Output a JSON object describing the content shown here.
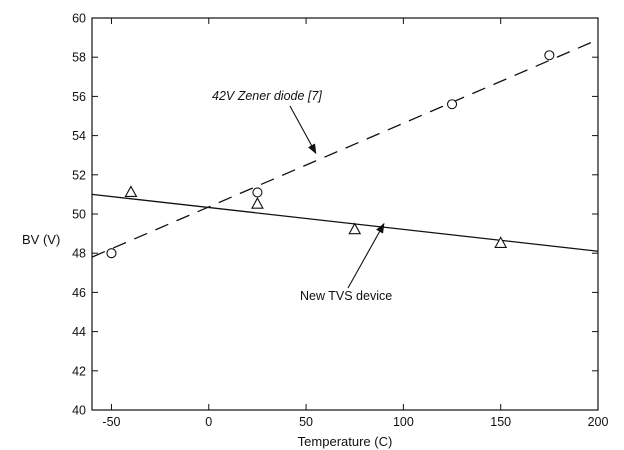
{
  "chart_data": {
    "type": "scatter",
    "title": "",
    "xlabel": "Temperature (C)",
    "ylabel": "BV (V)",
    "xlim": [
      -60,
      200
    ],
    "ylim": [
      40,
      60
    ],
    "xticks": [
      -50,
      0,
      50,
      100,
      150,
      200
    ],
    "yticks": [
      40,
      42,
      44,
      46,
      48,
      50,
      52,
      54,
      56,
      58,
      60
    ],
    "grid": false,
    "legend": "none",
    "series": [
      {
        "name": "42V Zener diode [7]",
        "marker": "circle",
        "points": [
          {
            "x": -50,
            "y": 48.0
          },
          {
            "x": 25,
            "y": 51.1
          },
          {
            "x": 125,
            "y": 55.6
          },
          {
            "x": 175,
            "y": 58.1
          }
        ],
        "fit": {
          "style": "dashed",
          "x": [
            -60,
            200
          ],
          "y": [
            47.8,
            58.9
          ]
        }
      },
      {
        "name": "New TVS device",
        "marker": "triangle",
        "points": [
          {
            "x": -40,
            "y": 51.1
          },
          {
            "x": 25,
            "y": 50.5
          },
          {
            "x": 75,
            "y": 49.2
          },
          {
            "x": 150,
            "y": 48.5
          }
        ],
        "fit": {
          "style": "solid",
          "x": [
            -60,
            200
          ],
          "y": [
            51.0,
            48.1
          ]
        }
      }
    ],
    "annotations": [
      {
        "text": "42V Zener diode [7]",
        "style": "italic",
        "series": 0,
        "arrow_to": {
          "x": 55,
          "y": 53.1
        }
      },
      {
        "text": "New TVS device",
        "style": "normal",
        "series": 1,
        "arrow_to": {
          "x": 90,
          "y": 49.5
        }
      }
    ]
  }
}
